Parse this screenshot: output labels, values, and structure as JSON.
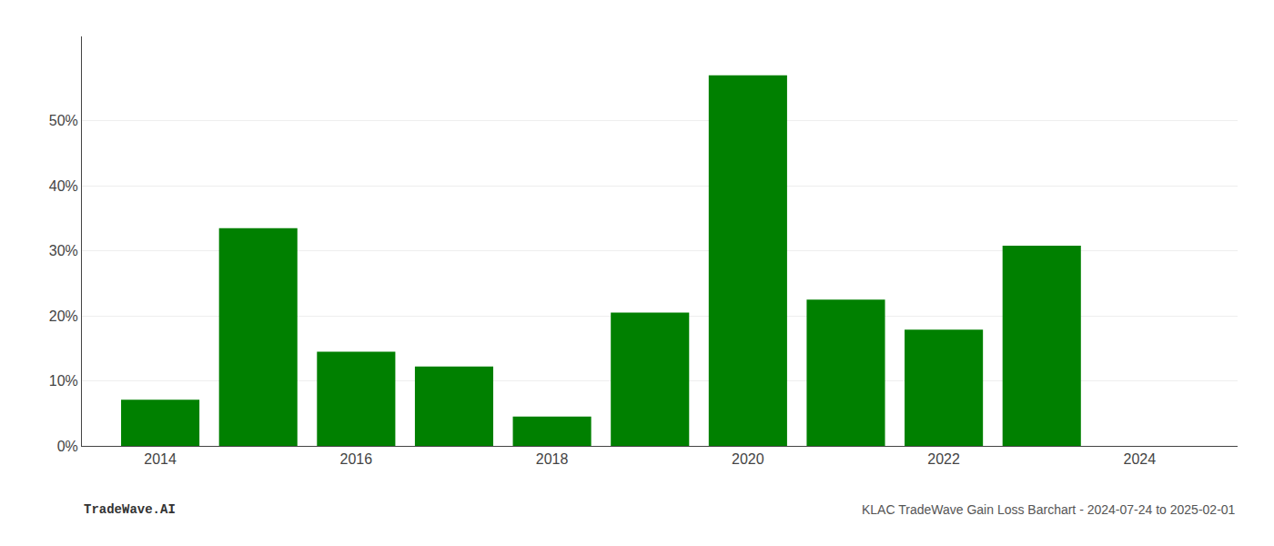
{
  "chart_data": {
    "type": "bar",
    "x": [
      2014,
      2015,
      2016,
      2017,
      2018,
      2019,
      2020,
      2021,
      2022,
      2023,
      2024
    ],
    "values": [
      0.071,
      0.335,
      0.145,
      0.122,
      0.045,
      0.205,
      0.57,
      0.225,
      0.179,
      0.308,
      null
    ],
    "color": "#008000",
    "xlim": [
      2013.2,
      2025.0
    ],
    "xticks": [
      2014,
      2016,
      2018,
      2020,
      2022,
      2024
    ],
    "ylim": [
      0,
      0.63
    ],
    "yticks": [
      {
        "value": 0,
        "label": "0%"
      },
      {
        "value": 0.1,
        "label": "10%"
      },
      {
        "value": 0.2,
        "label": "20%"
      },
      {
        "value": 0.3,
        "label": "30%"
      },
      {
        "value": 0.4,
        "label": "40%"
      },
      {
        "value": 0.5,
        "label": "50%"
      }
    ],
    "grid": true,
    "annotations": [
      "TradeWave.AI",
      "KLAC TradeWave Gain Loss Barchart - 2024-07-24 to 2025-02-01"
    ]
  }
}
